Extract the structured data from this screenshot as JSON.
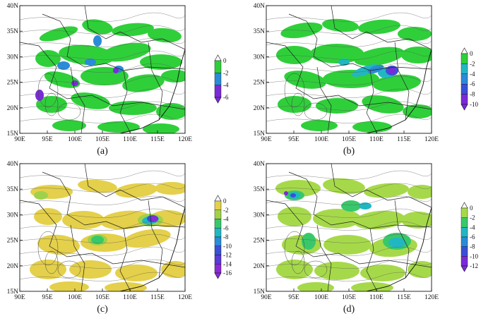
{
  "panels": [
    {
      "id": "a",
      "caption": "(a)",
      "palette": [
        "#2fcf3a",
        "#2a8bd8",
        "#7a2bd8"
      ],
      "colorbar": {
        "ticks": [
          "0",
          "-2",
          "-4",
          "-6"
        ]
      }
    },
    {
      "id": "b",
      "caption": "(b)",
      "palette": [
        "#2fcf3a",
        "#21b7c2",
        "#2a8bd8",
        "#3a4fd8",
        "#7a2bd8"
      ],
      "colorbar": {
        "ticks": [
          "0",
          "-2",
          "-4",
          "-6",
          "-8",
          "-10"
        ]
      }
    },
    {
      "id": "c",
      "caption": "(c)",
      "palette": [
        "#e4d04a",
        "#9fd24a",
        "#38c86a",
        "#21b7c2",
        "#2a8bd8",
        "#3a4fd8",
        "#5a3ad8",
        "#8a2bd8"
      ],
      "colorbar": {
        "ticks": [
          "0",
          "-2",
          "-4",
          "-6",
          "-8",
          "-10",
          "-12",
          "-14",
          "-16"
        ]
      }
    },
    {
      "id": "d",
      "caption": "(d)",
      "palette": [
        "#a6d94a",
        "#38c86a",
        "#21b7c2",
        "#2a8bd8",
        "#3a4fd8",
        "#7a2bd8"
      ],
      "colorbar": {
        "ticks": [
          "0",
          "-2",
          "-4",
          "-6",
          "-8",
          "-10",
          "-12"
        ]
      }
    }
  ],
  "x_ticks": [
    "90E",
    "95E",
    "100E",
    "105E",
    "110E",
    "115E",
    "120E"
  ],
  "y_ticks": [
    "15N",
    "20N",
    "25N",
    "30N",
    "35N",
    "40N"
  ],
  "icons": {
    "colorbar_ends": "triangle-arrow"
  }
}
